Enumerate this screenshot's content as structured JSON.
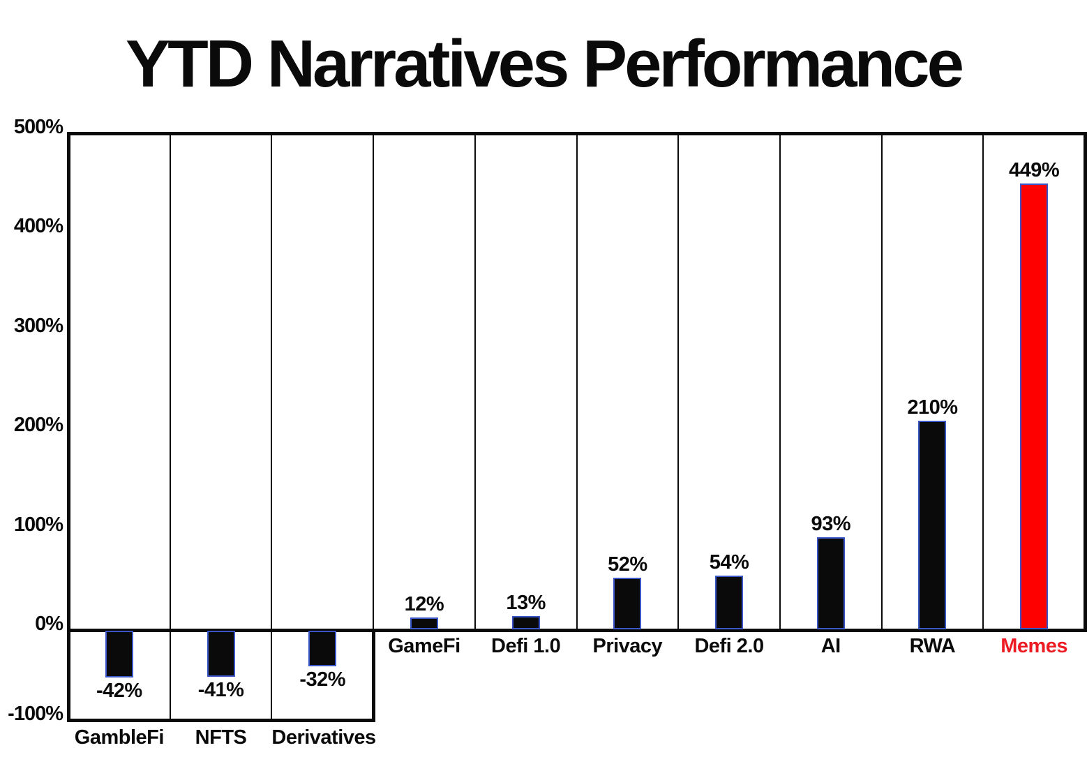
{
  "title": "YTD Narratives Performance",
  "chart_data": {
    "type": "bar",
    "title": "YTD Narratives Performance",
    "categories": [
      "GambleFi",
      "NFTS",
      "Derivatives",
      "GameFi",
      "Defi 1.0",
      "Privacy",
      "Defi 2.0",
      "AI",
      "RWA",
      "Memes"
    ],
    "values": [
      -42,
      -41,
      -32,
      12,
      13,
      52,
      54,
      93,
      210,
      449
    ],
    "value_labels": [
      "-42%",
      "-41%",
      "-32%",
      "12%",
      "13%",
      "52%",
      "54%",
      "93%",
      "210%",
      "449%"
    ],
    "xlabel": "",
    "ylabel": "",
    "ylim": [
      -100,
      500
    ],
    "y_ticks": [
      {
        "label": "500%",
        "value": 500
      },
      {
        "label": "400%",
        "value": 400
      },
      {
        "label": "300%",
        "value": 300
      },
      {
        "label": "200%",
        "value": 200
      },
      {
        "label": "100%",
        "value": 100
      },
      {
        "label": "0%",
        "value": 0
      },
      {
        "label": "-100%",
        "value": -100
      }
    ],
    "grid": "vertical column dividers only, framed plot, thick zero axis",
    "legend": "none",
    "highlight_category": "Memes",
    "colors": {
      "bar_default": "#0a0a0a",
      "bar_highlight": "#fe0000",
      "bar_outline": "#3a55c8",
      "highlight_label": "#ed1c24",
      "text": "#0a0a0a",
      "background": "#ffffff"
    }
  }
}
